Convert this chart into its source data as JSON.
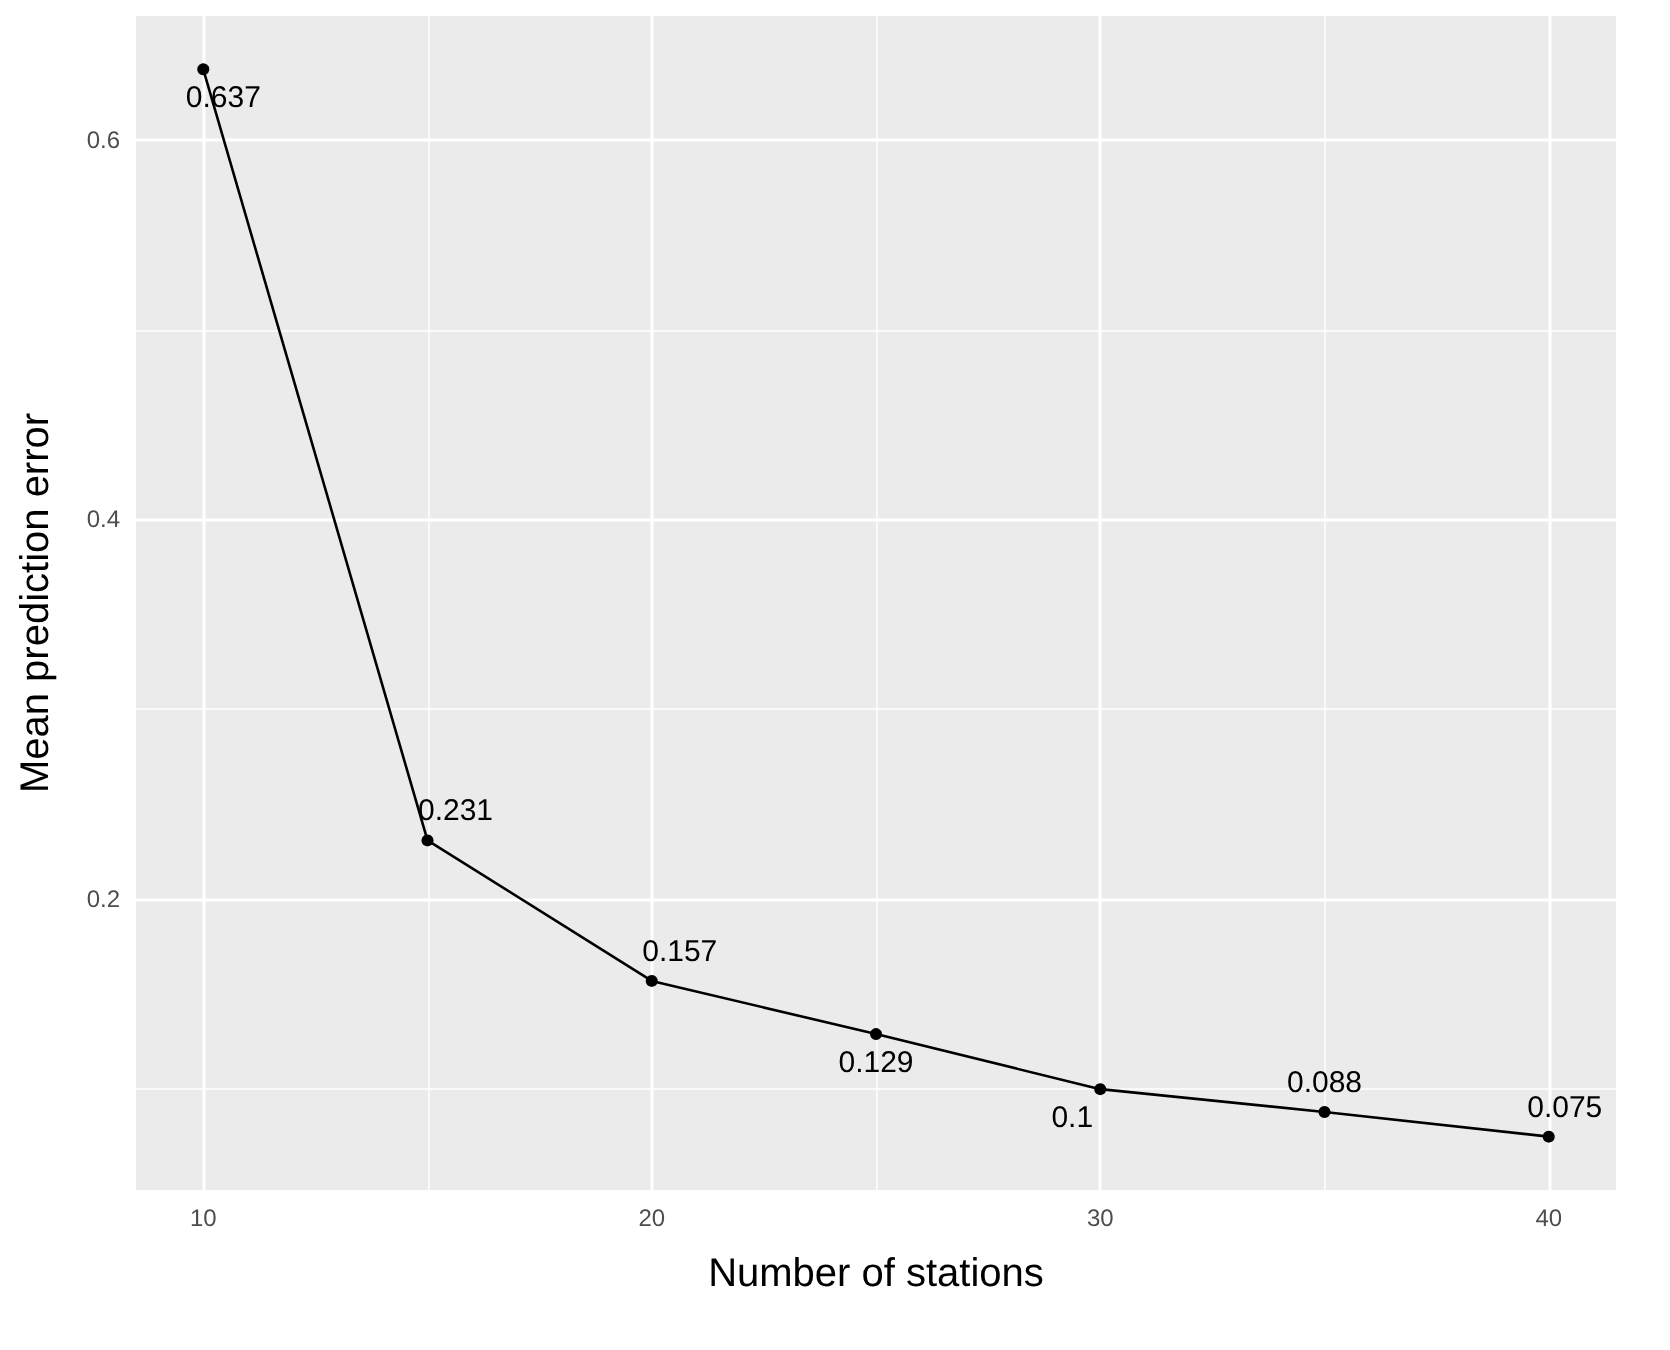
{
  "chart_data": {
    "type": "line",
    "xlabel": "Number of stations",
    "ylabel": "Mean prediction error",
    "x": [
      10,
      15,
      20,
      25,
      30,
      35,
      40
    ],
    "series": [
      {
        "color": "#000000",
        "values": [
          0.637,
          0.231,
          0.157,
          0.129,
          0.1,
          0.088,
          0.075
        ]
      }
    ],
    "xlim": [
      8.5,
      41.5
    ],
    "xticks": [
      10,
      {
        "value": 15,
        "label": null
      },
      20,
      {
        "value": 25,
        "label": null
      },
      30,
      {
        "value": 35,
        "label": null
      },
      40
    ],
    "ylim": [
      0.0469,
      0.6651
    ],
    "yticks": [
      {
        "value": 0.1,
        "label": null
      },
      0.2,
      {
        "value": 0.3,
        "label": null
      },
      0.4,
      {
        "value": 0.5,
        "label": null
      },
      0.6
    ],
    "grid": true,
    "marker": "circle",
    "line_style": "solid",
    "data_labels": true
  }
}
